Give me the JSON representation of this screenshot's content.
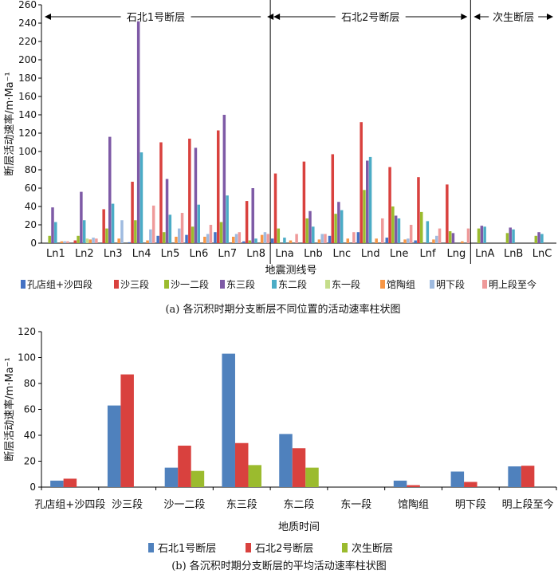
{
  "colors": [
    "#4472C4",
    "#D9413E",
    "#9BBB2E",
    "#7E5AA6",
    "#4BACC6",
    "#C5DD8B",
    "#F79646",
    "#9FBBE0",
    "#EF9A9A"
  ],
  "chart_data": [
    {
      "type": "bar",
      "categories": [
        "Ln1",
        "Ln2",
        "Ln3",
        "Ln4",
        "Ln5",
        "Ln6",
        "Ln7",
        "Ln8",
        "Lna",
        "Lnb",
        "Lnc",
        "Lnd",
        "Lne",
        "Lnf",
        "Lng",
        "LnA",
        "LnB",
        "LnC"
      ],
      "series": [
        {
          "name": "孔店组+沙四段",
          "values": [
            0,
            0,
            0,
            1,
            8,
            9,
            12,
            2,
            5,
            0,
            8,
            12,
            6,
            3,
            0,
            0,
            0,
            0
          ]
        },
        {
          "name": "沙三段",
          "values": [
            0,
            3,
            37,
            67,
            110,
            114,
            123,
            46,
            76,
            89,
            97,
            132,
            83,
            72,
            64,
            0,
            0,
            0
          ]
        },
        {
          "name": "沙一二段",
          "values": [
            8,
            8,
            16,
            25,
            12,
            18,
            23,
            3,
            16,
            27,
            32,
            58,
            40,
            34,
            13,
            16,
            11,
            8
          ]
        },
        {
          "name": "东三段",
          "values": [
            39,
            56,
            116,
            242,
            70,
            104,
            140,
            60,
            0,
            35,
            45,
            90,
            30,
            0,
            11,
            19,
            17,
            12
          ]
        },
        {
          "name": "东二段",
          "values": [
            23,
            25,
            43,
            99,
            31,
            42,
            52,
            5,
            6,
            18,
            36,
            94,
            27,
            24,
            0,
            18,
            15,
            10
          ]
        },
        {
          "name": "东一段",
          "values": [
            0,
            5,
            0,
            0,
            0,
            0,
            0,
            0,
            0,
            0,
            0,
            0,
            0,
            0,
            0,
            0,
            0,
            0
          ]
        },
        {
          "name": "馆陶组",
          "values": [
            2,
            4,
            5,
            3,
            7,
            7,
            7,
            9,
            3,
            4,
            5,
            5,
            4,
            4,
            2,
            0,
            0,
            0
          ]
        },
        {
          "name": "明下段",
          "values": [
            2,
            6,
            25,
            15,
            16,
            10,
            10,
            12,
            0,
            10,
            0,
            0,
            5,
            8,
            0,
            0,
            0,
            0
          ]
        },
        {
          "name": "明上段至今",
          "values": [
            2,
            5,
            0,
            41,
            33,
            20,
            12,
            10,
            10,
            10,
            12,
            27,
            20,
            16,
            16,
            0,
            0,
            0
          ]
        }
      ],
      "ylabel": "断层活动速率/m·Ma⁻¹",
      "xlabel": "地震测线号",
      "ylim": [
        0,
        260
      ],
      "yticks": [
        0,
        20,
        40,
        60,
        80,
        100,
        120,
        140,
        160,
        180,
        200,
        220,
        240,
        260
      ],
      "fault_groups": [
        {
          "name": "石北1号断层",
          "from": 0,
          "to": 7
        },
        {
          "name": "石北2号断层",
          "from": 8,
          "to": 14
        },
        {
          "name": "次生断层",
          "from": 15,
          "to": 17
        }
      ],
      "caption": "(a) 各沉积时期分支断层不同位置的活动速率柱状图"
    },
    {
      "type": "bar",
      "categories": [
        "孔店组+沙四段",
        "沙三段",
        "沙一二段",
        "东三段",
        "东二段",
        "东一段",
        "馆陶组",
        "明下段",
        "明上段至今"
      ],
      "series": [
        {
          "name": "石北1号断层",
          "values": [
            5,
            63,
            15,
            103,
            41,
            0,
            5,
            12,
            16
          ]
        },
        {
          "name": "石北2号断层",
          "values": [
            6.5,
            87,
            32,
            34,
            30,
            0,
            1.5,
            4,
            16.5
          ]
        },
        {
          "name": "次生断层",
          "values": [
            0,
            0,
            12.5,
            17,
            15,
            0,
            0,
            0,
            0
          ]
        }
      ],
      "ylabel": "断层活动速率/m·Ma⁻¹",
      "xlabel": "地质时间",
      "ylim": [
        0,
        120
      ],
      "yticks": [
        0,
        20,
        40,
        60,
        80,
        100,
        120
      ],
      "caption": "(b) 各沉积时期分支断层的平均活动速率柱状图"
    }
  ]
}
